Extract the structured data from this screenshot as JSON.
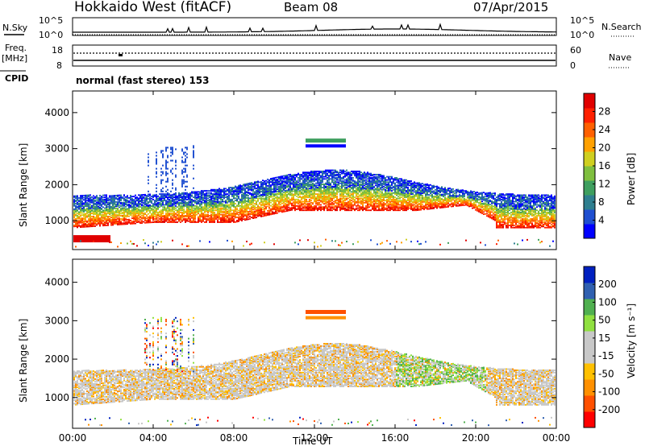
{
  "header": {
    "title": "Hokkaido West (fitACF)",
    "beam": "Beam 08",
    "date": "07/Apr/2015"
  },
  "noise_panel": {
    "left_label": "N.Sky",
    "right_label": "N.Search",
    "ytick_top": "10^5",
    "ytick_bottom": "10^0"
  },
  "freq_panel": {
    "left_label_line1": "Freq.",
    "left_label_line2": "[MHz]",
    "left_ticks": [
      "18",
      "8"
    ],
    "right_ticks": [
      "60",
      "0"
    ],
    "right_label": "Nave",
    "cpid_label": "CPID",
    "mode_text": "normal (fast stereo) 153"
  },
  "colors": {
    "power": [
      "#0000ff",
      "#1f4fd0",
      "#2f7f8f",
      "#3f9f5f",
      "#7fbf3f",
      "#cfcf20",
      "#ffa000",
      "#ff6000",
      "#ff2000",
      "#e00000"
    ],
    "velocity": [
      "#ff0000",
      "#ff5000",
      "#ff9000",
      "#ffc000",
      "#c8c8c8",
      "#c8c8c8",
      "#90e040",
      "#50b050",
      "#3060b0",
      "#0020c0"
    ]
  },
  "chart_data": [
    {
      "type": "heatmap",
      "panel": "power",
      "ylabel": "Slant Range [km]",
      "yticks": [
        "1000",
        "2000",
        "3000",
        "4000"
      ],
      "ylim": [
        200,
        4600
      ],
      "x_hours": [
        0,
        24
      ],
      "colorbar_label": "Power [dB]",
      "colorbar_ticks": [
        "4",
        "8",
        "12",
        "16",
        "20",
        "24",
        "28"
      ]
    },
    {
      "type": "heatmap",
      "panel": "velocity",
      "ylabel": "Slant Range [km]",
      "yticks": [
        "1000",
        "2000",
        "3000",
        "4000"
      ],
      "ylim": [
        200,
        4600
      ],
      "x_hours": [
        0,
        24
      ],
      "colorbar_label": "Velocity [m s⁻¹]",
      "colorbar_ticks": [
        "-200",
        "-100",
        "-50",
        "-15",
        "15",
        "50",
        "100",
        "200"
      ],
      "xlabel": "Time UT",
      "xticks": [
        "00:00",
        "04:00",
        "08:00",
        "12:00",
        "16:00",
        "20:00",
        "00:00"
      ]
    }
  ]
}
